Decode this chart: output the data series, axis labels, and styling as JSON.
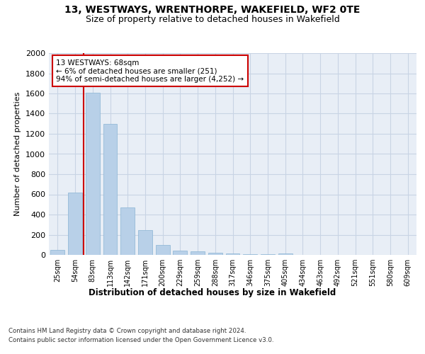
{
  "title1": "13, WESTWAYS, WRENTHORPE, WAKEFIELD, WF2 0TE",
  "title2": "Size of property relative to detached houses in Wakefield",
  "xlabel": "Distribution of detached houses by size in Wakefield",
  "ylabel": "Number of detached properties",
  "categories": [
    "25sqm",
    "54sqm",
    "83sqm",
    "113sqm",
    "142sqm",
    "171sqm",
    "200sqm",
    "229sqm",
    "259sqm",
    "288sqm",
    "317sqm",
    "346sqm",
    "375sqm",
    "405sqm",
    "434sqm",
    "463sqm",
    "492sqm",
    "521sqm",
    "551sqm",
    "580sqm",
    "609sqm"
  ],
  "values": [
    50,
    620,
    1610,
    1300,
    470,
    245,
    100,
    45,
    35,
    20,
    15,
    10,
    8,
    15,
    0,
    0,
    0,
    0,
    0,
    0,
    0
  ],
  "bar_color": "#b8d0e8",
  "bar_edge_color": "#8ab4d4",
  "grid_color": "#c8d4e4",
  "bg_color": "#e8eef6",
  "vline_color": "#cc0000",
  "annotation_text": "13 WESTWAYS: 68sqm\n← 6% of detached houses are smaller (251)\n94% of semi-detached houses are larger (4,252) →",
  "annotation_box_color": "#ffffff",
  "annotation_box_edge": "#cc0000",
  "footer1": "Contains HM Land Registry data © Crown copyright and database right 2024.",
  "footer2": "Contains public sector information licensed under the Open Government Licence v3.0.",
  "ylim": [
    0,
    2000
  ],
  "yticks": [
    0,
    200,
    400,
    600,
    800,
    1000,
    1200,
    1400,
    1600,
    1800,
    2000
  ]
}
